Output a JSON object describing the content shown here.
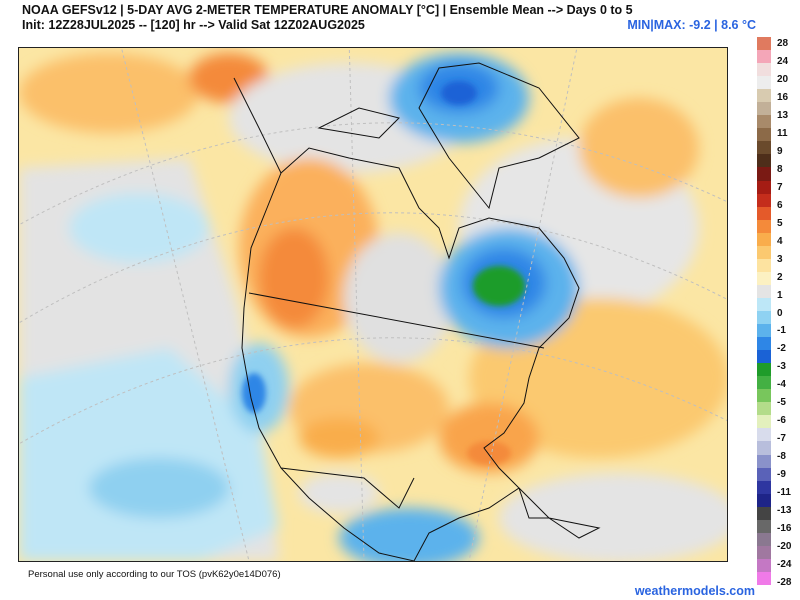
{
  "header": {
    "title": "NOAA GEFSv12 | 5-DAY AVG 2-METER TEMPERATURE ANOMALY [°C] | Ensemble Mean --> Days 0 to 5",
    "subtitle": "Init: 12Z28JUL2025 -- [120] hr --> Valid Sat 12Z02AUG2025",
    "minmax": "MIN|MAX: -9.2 | 8.6 °C"
  },
  "legend": {
    "colors": [
      "#e07a5f",
      "#f4a6b8",
      "#f1dede",
      "#ededed",
      "#d8cbb0",
      "#c2b098",
      "#a88a6a",
      "#8c6a48",
      "#6a4a2c",
      "#4e2e1a",
      "#7a1a14",
      "#a51c14",
      "#c42d1c",
      "#e45a2a",
      "#f48a3a",
      "#f9ad4c",
      "#fbc970",
      "#fde3a0",
      "#fcf1c2",
      "#e4e4e4",
      "#bde7f7",
      "#8fd2f2",
      "#5cb2ec",
      "#2e86e6",
      "#1a62d6",
      "#1f9c2a",
      "#43b043",
      "#78c65c",
      "#b3dc8a",
      "#e3f0bd",
      "#d8dcec",
      "#b8bedc",
      "#8a92ca",
      "#5a62b8",
      "#2e36a0",
      "#1e2488",
      "#444444",
      "#686868",
      "#8a7890",
      "#a078a0",
      "#c478c4",
      "#f07ae8"
    ],
    "labels": [
      "28",
      "24",
      "20",
      "16",
      "13",
      "11",
      "9",
      "8",
      "7",
      "6",
      "5",
      "4",
      "3",
      "2",
      "1",
      "0",
      "-1",
      "-2",
      "-3",
      "-4",
      "-5",
      "-6",
      "-7",
      "-8",
      "-9",
      "-11",
      "-13",
      "-16",
      "-20",
      "-24",
      "-28"
    ]
  },
  "footer": {
    "tos": "Personal use only according to our TOS (pvK62y0e14D076)",
    "brand": "weathermodels.com"
  }
}
